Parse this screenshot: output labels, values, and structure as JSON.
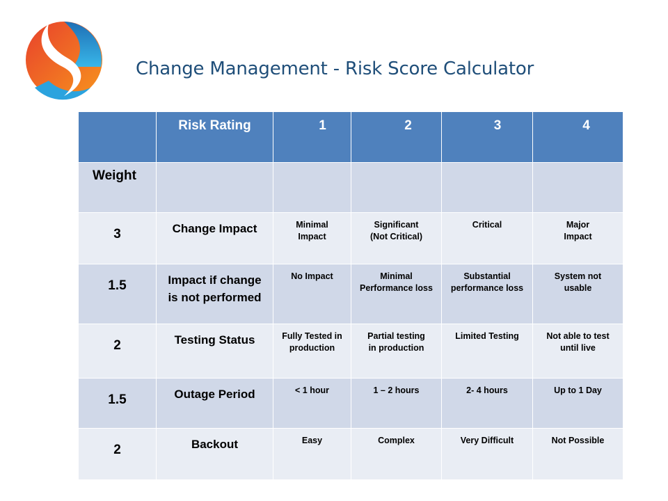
{
  "title": "Change Management - Risk Score Calculator",
  "logo": {
    "icon": "s-swoosh-logo-icon",
    "colors": [
      "#e8412c",
      "#f7941d",
      "#29a8e0"
    ]
  },
  "table": {
    "header": [
      "",
      "Risk Rating",
      "1",
      "2",
      "3",
      "4"
    ],
    "weight_label": "Weight",
    "rows": [
      {
        "weight": "3",
        "factor": "Change Impact",
        "levels": [
          "Minimal\nImpact",
          "Significant\n(Not Critical)",
          "Critical",
          "Major\nImpact"
        ]
      },
      {
        "weight": "1.5",
        "factor": "Impact if change is not performed",
        "levels": [
          "No Impact",
          "Minimal\nPerformance loss",
          "Substantial\nperformance loss",
          "System not\nusable"
        ]
      },
      {
        "weight": "2",
        "factor": "Testing Status",
        "levels": [
          "Fully Tested in\nproduction",
          "Partial testing\nin production",
          "Limited Testing",
          "Not able to test\nuntil live"
        ]
      },
      {
        "weight": "1.5",
        "factor": "Outage Period",
        "levels": [
          "< 1 hour",
          "1 – 2 hours",
          "2- 4 hours",
          "Up to 1 Day"
        ]
      },
      {
        "weight": "2",
        "factor": "Backout",
        "levels": [
          "Easy",
          "Complex",
          "Very Difficult",
          "Not Possible"
        ]
      }
    ]
  },
  "colors": {
    "header": "#4f81bd",
    "row_dark": "#d0d8e8",
    "row_light": "#e9edf4",
    "title": "#1f4e79"
  }
}
